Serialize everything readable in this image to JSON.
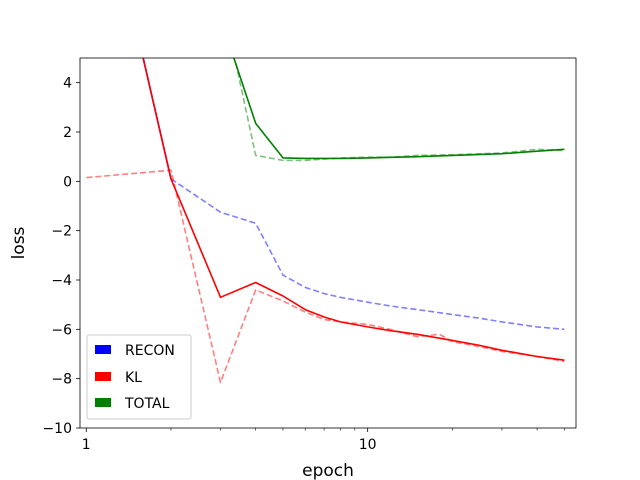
{
  "chart_data": {
    "type": "line",
    "xscale": "log",
    "xlabel": "epoch",
    "ylabel": "loss",
    "xlim": [
      0.95,
      55
    ],
    "ylim": [
      -10,
      5
    ],
    "xticks": [
      {
        "value": 1,
        "label": "1"
      },
      {
        "value": 10,
        "label": "10"
      }
    ],
    "yticks": [
      {
        "value": 4,
        "label": "4"
      },
      {
        "value": 2,
        "label": "2"
      },
      {
        "value": 0,
        "label": "0"
      },
      {
        "value": -2,
        "label": "−2"
      },
      {
        "value": -4,
        "label": "−4"
      },
      {
        "value": -6,
        "label": "−6"
      },
      {
        "value": -8,
        "label": "−8"
      },
      {
        "value": -10,
        "label": "−10"
      }
    ],
    "grid": false,
    "legend_position": "lower-left",
    "legend": [
      {
        "label": "RECON",
        "color": "#0000ff"
      },
      {
        "label": "KL",
        "color": "#ff0000"
      },
      {
        "label": "TOTAL",
        "color": "#008000"
      }
    ],
    "series": [
      {
        "color": "#0000ff",
        "style": "solid",
        "opacity": 1,
        "points": [
          [
            1,
            15
          ],
          [
            2,
            0.1
          ]
        ]
      },
      {
        "color": "#0000ff",
        "style": "dashed",
        "opacity": 0.5,
        "points": [
          [
            2,
            0.1
          ],
          [
            3,
            -1.25
          ],
          [
            4,
            -1.7
          ],
          [
            5,
            -3.8
          ],
          [
            6,
            -4.3
          ],
          [
            7,
            -4.55
          ],
          [
            8,
            -4.7
          ],
          [
            10,
            -4.9
          ],
          [
            12,
            -5.05
          ],
          [
            15,
            -5.2
          ],
          [
            20,
            -5.4
          ],
          [
            25,
            -5.55
          ],
          [
            30,
            -5.7
          ],
          [
            40,
            -5.9
          ],
          [
            50,
            -6.0
          ]
        ]
      },
      {
        "color": "#ff0000",
        "style": "solid",
        "opacity": 1,
        "points": [
          [
            1,
            15
          ],
          [
            2,
            0.1
          ],
          [
            3,
            -4.7
          ],
          [
            4,
            -4.1
          ],
          [
            5,
            -4.65
          ],
          [
            6,
            -5.2
          ],
          [
            7,
            -5.5
          ],
          [
            8,
            -5.7
          ],
          [
            10,
            -5.9
          ],
          [
            12,
            -6.05
          ],
          [
            15,
            -6.2
          ],
          [
            20,
            -6.45
          ],
          [
            25,
            -6.65
          ],
          [
            30,
            -6.85
          ],
          [
            40,
            -7.1
          ],
          [
            50,
            -7.25
          ]
        ]
      },
      {
        "color": "#ff0000",
        "style": "dashed",
        "opacity": 0.5,
        "points": [
          [
            1,
            0.15
          ],
          [
            2,
            0.45
          ],
          [
            3,
            -8.15
          ],
          [
            4,
            -4.4
          ],
          [
            5,
            -4.85
          ],
          [
            6,
            -5.3
          ],
          [
            7,
            -5.6
          ],
          [
            8,
            -5.7
          ],
          [
            10,
            -5.8
          ],
          [
            12,
            -6.0
          ],
          [
            15,
            -6.3
          ],
          [
            18,
            -6.2
          ],
          [
            20,
            -6.5
          ],
          [
            25,
            -6.7
          ],
          [
            30,
            -6.9
          ],
          [
            40,
            -7.1
          ],
          [
            50,
            -7.3
          ]
        ]
      },
      {
        "color": "#008000",
        "style": "solid",
        "opacity": 1,
        "points": [
          [
            3.3,
            5.2
          ],
          [
            4,
            2.35
          ],
          [
            5,
            0.95
          ],
          [
            6,
            0.93
          ],
          [
            8,
            0.93
          ],
          [
            10,
            0.95
          ],
          [
            15,
            1.0
          ],
          [
            20,
            1.05
          ],
          [
            30,
            1.12
          ],
          [
            40,
            1.22
          ],
          [
            50,
            1.3
          ]
        ]
      },
      {
        "color": "#008000",
        "style": "dashed",
        "opacity": 0.5,
        "points": [
          [
            3.4,
            4.8
          ],
          [
            4,
            1.05
          ],
          [
            5,
            0.85
          ],
          [
            6,
            0.85
          ],
          [
            8,
            0.95
          ],
          [
            10,
            0.98
          ],
          [
            12,
            0.98
          ],
          [
            15,
            1.05
          ],
          [
            20,
            1.08
          ],
          [
            30,
            1.15
          ],
          [
            40,
            1.3
          ],
          [
            50,
            1.25
          ]
        ]
      }
    ]
  }
}
